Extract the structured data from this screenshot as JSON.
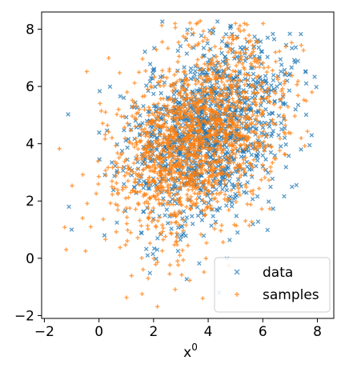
{
  "chart_data": {
    "type": "scatter",
    "title": "",
    "xlabel_base": "x",
    "xlabel_sup": "0",
    "ylabel": "",
    "xlim": [
      -2.1,
      8.6
    ],
    "ylim": [
      -2.1,
      8.6
    ],
    "xticks": [
      -2,
      0,
      2,
      4,
      6,
      8
    ],
    "yticks": [
      -2,
      0,
      2,
      4,
      6,
      8
    ],
    "xtick_labels": [
      "−2",
      "0",
      "2",
      "4",
      "6",
      "8"
    ],
    "ytick_labels": [
      "−2",
      "0",
      "2",
      "4",
      "6",
      "8"
    ],
    "grid": false,
    "legend_position": "lower-right",
    "series": [
      {
        "name": "data",
        "marker": "x",
        "color": "#1f77b4",
        "distribution": {
          "n": 1300,
          "mean": [
            3.9,
            4.5
          ],
          "std": [
            1.45,
            1.6
          ],
          "corr": 0.3,
          "seed": 11
        },
        "extra_points": [
          [
            -1.1,
            1.8
          ],
          [
            -1.0,
            1.0
          ],
          [
            0.2,
            0.8
          ],
          [
            7.4,
            3.8
          ],
          [
            7.2,
            5.2
          ],
          [
            4.4,
            -1.2
          ],
          [
            1.2,
            2.9
          ]
        ]
      },
      {
        "name": "samples",
        "marker": "plus",
        "color": "#ff7f0e",
        "distribution": {
          "n": 1700,
          "mean": [
            3.6,
            4.2
          ],
          "std": [
            1.5,
            1.7
          ],
          "corr": 0.35,
          "seed": 29
        },
        "extra_points": [
          [
            -1.2,
            0.3
          ],
          [
            -0.6,
            1.4
          ],
          [
            -0.3,
            1.1
          ],
          [
            7.8,
            5.8
          ],
          [
            5.0,
            8.2
          ],
          [
            1.8,
            -0.7
          ],
          [
            3.8,
            -1.4
          ]
        ]
      }
    ]
  }
}
